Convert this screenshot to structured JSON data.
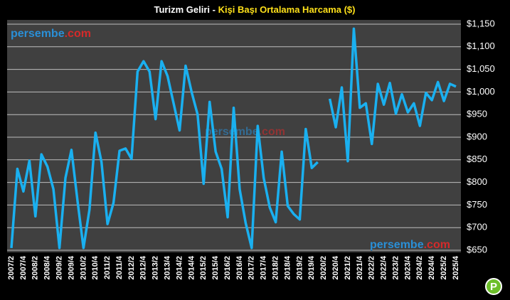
{
  "chart_data": {
    "type": "line",
    "title_parts": [
      "Turizm Geliri -",
      "Kişi Başı Ortalama Harcama ($)"
    ],
    "title_colors": [
      "#ffffff",
      "#ffe11a"
    ],
    "watermark": [
      "persembe",
      ".com"
    ],
    "watermark_colors": [
      "#2a8fd6",
      "#d42a2a"
    ],
    "logo": "P",
    "categories": [
      "2007/2",
      null,
      "2007/4",
      null,
      "2008/2",
      null,
      "2008/4",
      null,
      "2009/2",
      null,
      "2009/4",
      null,
      "2010/2",
      null,
      "2010/4",
      null,
      "2011/2",
      null,
      "2011/4",
      null,
      "2012/2",
      null,
      "2012/4",
      null,
      "2013/2",
      null,
      "2013/4",
      null,
      "2014/2",
      null,
      "2014/4",
      null,
      "2015/2",
      null,
      "2015/4",
      null,
      "2016/2",
      null,
      "2016/4",
      null,
      "2017/2",
      null,
      "2017/4",
      null,
      "2018/2",
      null,
      "2018/4",
      null,
      "2019/2",
      null,
      "2019/4",
      null,
      "2020/2",
      null,
      "2020/4",
      null,
      "2021/2",
      null,
      "2021/4",
      null,
      "2022/2",
      null,
      "2022/4",
      null,
      "2023/2",
      null,
      "2023/4",
      null,
      "2024/2",
      null,
      "2024/4",
      null,
      "2025/2",
      null,
      "2025/4"
    ],
    "series": [
      {
        "color": "#1ab0f0",
        "values": [
          655,
          830,
          780,
          848,
          725,
          862,
          835,
          785,
          655,
          810,
          872,
          760,
          655,
          740,
          910,
          845,
          708,
          755,
          870,
          875,
          852,
          1045,
          1068,
          1045,
          940,
          1068,
          1035,
          975,
          915,
          1058,
          1000,
          950,
          797,
          978,
          868,
          830,
          723,
          965,
          785,
          710,
          655,
          925,
          810,
          745,
          712,
          868,
          748,
          730,
          718,
          918,
          832,
          845,
          null,
          985,
          922,
          1010,
          847,
          1140,
          965,
          975,
          885,
          1018,
          972,
          1020,
          952,
          995,
          955,
          975,
          925,
          998,
          982,
          1022,
          980,
          1018,
          1012
        ]
      }
    ],
    "ylim": [
      650,
      1150
    ],
    "yticks": [
      {
        "value": 650,
        "label": "$650"
      },
      {
        "value": 700,
        "label": "$700"
      },
      {
        "value": 750,
        "label": "$750"
      },
      {
        "value": 800,
        "label": "$800"
      },
      {
        "value": 850,
        "label": "$850"
      },
      {
        "value": 900,
        "label": "$900"
      },
      {
        "value": 950,
        "label": "$950"
      },
      {
        "value": 1000,
        "label": "$1,000"
      },
      {
        "value": 1050,
        "label": "$1,050"
      },
      {
        "value": 1100,
        "label": "$1,100"
      },
      {
        "value": 1150,
        "label": "$1,150"
      }
    ],
    "grid": true
  }
}
